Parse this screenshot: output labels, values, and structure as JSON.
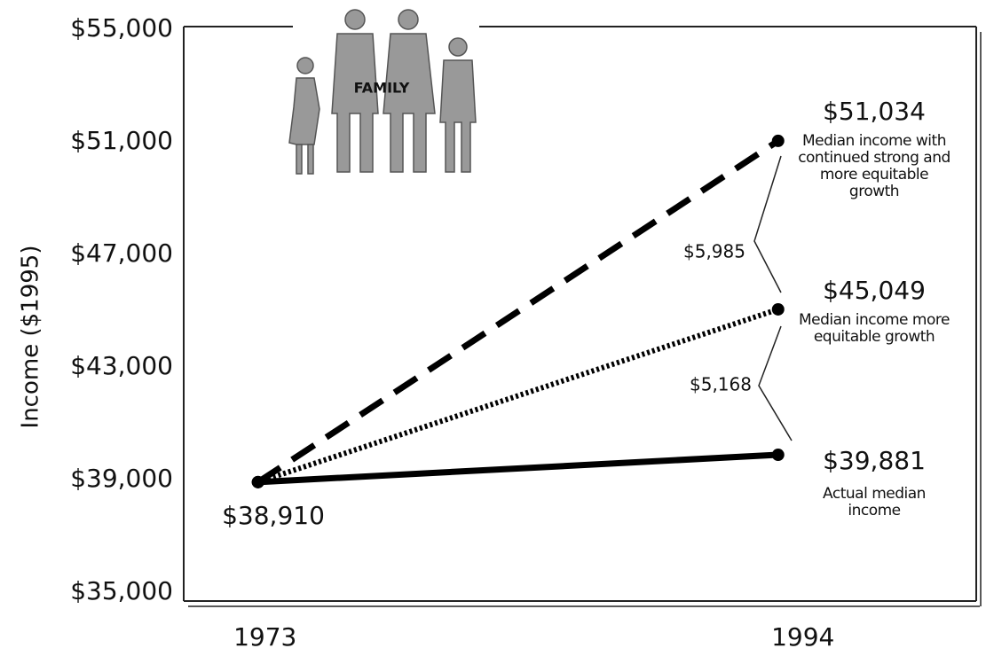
{
  "chart_data": {
    "type": "line",
    "y_label": "Income ($1995)",
    "image_text": "FAMILY",
    "x": [
      1973,
      1994
    ],
    "xlim": [
      1970,
      2002
    ],
    "xticks": [
      1973,
      1994
    ],
    "ylim": [
      35000,
      55000
    ],
    "yticks": [
      {
        "value": 35000,
        "label": "$35,000"
      },
      {
        "value": 39000,
        "label": "$39,000"
      },
      {
        "value": 43000,
        "label": "$43,000"
      },
      {
        "value": 47000,
        "label": "$47,000"
      },
      {
        "value": 51000,
        "label": "$51,000"
      },
      {
        "value": 55000,
        "label": "$55,000"
      }
    ],
    "series": [
      {
        "name": "Actual median income",
        "color": "#000000",
        "dash": "solid",
        "values": [
          38910,
          39881
        ],
        "value_labels": [
          "$38,910",
          "$39,881"
        ]
      },
      {
        "name": "Median income more equitable growth",
        "color": "#000000",
        "dash": "dotted",
        "values": [
          38910,
          45049
        ],
        "value_labels": [
          null,
          "$45,049"
        ]
      },
      {
        "name": "Median income with continued strong and more equitable growth",
        "color": "#000000",
        "dash": "dashed",
        "values": [
          38910,
          51034
        ],
        "value_labels": [
          null,
          "$51,034"
        ]
      }
    ],
    "differences": [
      {
        "value": 5985,
        "label": "$5,985"
      },
      {
        "value": 5168,
        "label": "$5,168"
      }
    ]
  }
}
